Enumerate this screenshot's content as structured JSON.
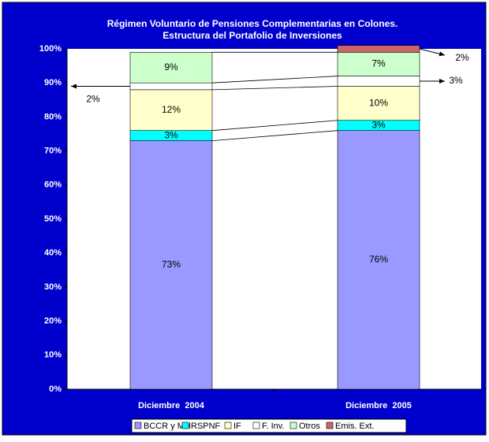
{
  "chart_data": {
    "type": "stacked_bar",
    "title": "Régimen Voluntario de Pensiones Complementarias en Colones.",
    "subtitle": "Estructura del Portafolio de Inversiones",
    "categories": [
      "Diciembre  2004",
      "Diciembre  2005"
    ],
    "series": [
      {
        "name": "BCCR y MH",
        "color": "#9999ff",
        "values": [
          73,
          76
        ],
        "value_labels": [
          "73%",
          "76%"
        ]
      },
      {
        "name": "RSPNF",
        "color": "#00ffff",
        "values": [
          3,
          3
        ],
        "value_labels": [
          "3%",
          "3%"
        ]
      },
      {
        "name": "IF",
        "color": "#ffffcc",
        "values": [
          12,
          10
        ],
        "value_labels": [
          "12%",
          "10%"
        ]
      },
      {
        "name": "F. Inv.",
        "color": "#ffffff",
        "values": [
          2,
          3
        ],
        "value_labels": [
          "2%",
          "3%"
        ]
      },
      {
        "name": "Otros",
        "color": "#ccffcc",
        "values": [
          9,
          7
        ],
        "value_labels": [
          "9%",
          "7%"
        ]
      },
      {
        "name": "Emis. Ext.",
        "color": "#cc6666",
        "values": [
          null,
          2
        ],
        "value_labels": [
          null,
          "2%"
        ]
      }
    ],
    "ylim": [
      0,
      100
    ],
    "yticks": [
      {
        "value": 0,
        "label": "0%"
      },
      {
        "value": 10,
        "label": "10%"
      },
      {
        "value": 20,
        "label": "20%"
      },
      {
        "value": 30,
        "label": "30%"
      },
      {
        "value": 40,
        "label": "40%"
      },
      {
        "value": 50,
        "label": "50%"
      },
      {
        "value": 60,
        "label": "60%"
      },
      {
        "value": 70,
        "label": "70%"
      },
      {
        "value": 80,
        "label": "80%"
      },
      {
        "value": 90,
        "label": "90%"
      },
      {
        "value": 100,
        "label": "100%"
      }
    ],
    "legend": "bottom"
  }
}
